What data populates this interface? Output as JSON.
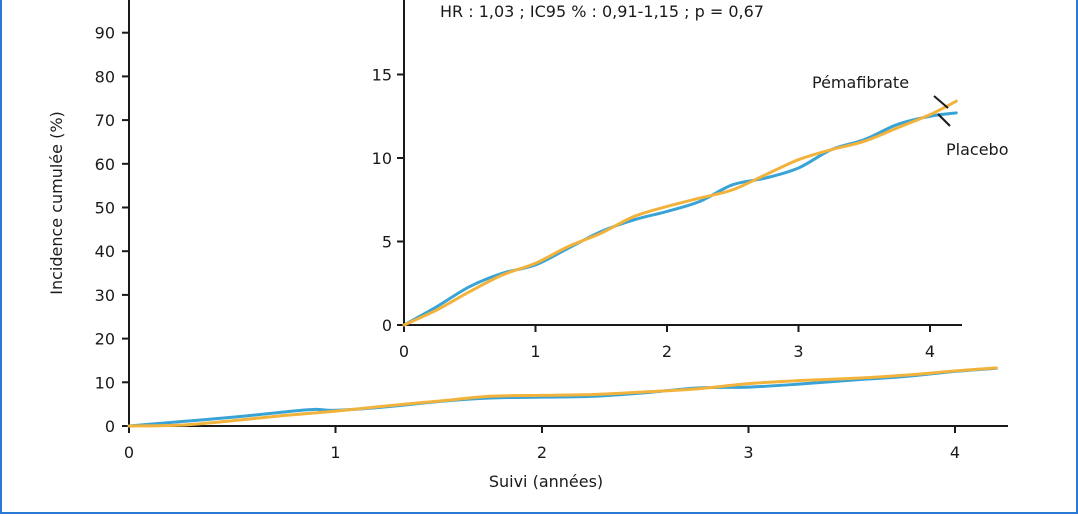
{
  "colors": {
    "frame": "#2d7ad6",
    "placebo": "#3aa3d6",
    "pemafibrate": "#f2b33d"
  },
  "chart_data": [
    {
      "type": "line",
      "xlabel": "Suivi (années)",
      "ylabel": "Incidence cumulée (%)",
      "xlim": [
        0,
        4.25
      ],
      "ylim": [
        0,
        90
      ],
      "x_ticks": [
        "0",
        "1",
        "2",
        "3",
        "4"
      ],
      "y_ticks": [
        "0",
        "10",
        "20",
        "30",
        "40",
        "50",
        "60",
        "70",
        "80",
        "90"
      ],
      "series": [
        {
          "name": "Placebo",
          "color": "#3aa3d6",
          "x": [
            0,
            0.25,
            0.5,
            0.75,
            0.9,
            1.0,
            1.25,
            1.5,
            1.75,
            2.0,
            2.25,
            2.5,
            2.75,
            3.0,
            3.25,
            3.5,
            3.75,
            4.0,
            4.2
          ],
          "y": [
            0,
            1.0,
            2.0,
            3.2,
            3.8,
            3.6,
            4.4,
            5.6,
            6.4,
            6.6,
            6.8,
            7.6,
            8.7,
            8.9,
            9.6,
            10.5,
            11.3,
            12.5,
            13.2
          ]
        },
        {
          "name": "Pémafibrate",
          "color": "#f2b33d",
          "x": [
            0,
            0.25,
            0.5,
            0.75,
            1.0,
            1.25,
            1.5,
            1.75,
            2.0,
            2.25,
            2.5,
            2.75,
            3.0,
            3.25,
            3.5,
            3.75,
            4.0,
            4.2
          ],
          "y": [
            0,
            0.2,
            1.2,
            2.4,
            3.4,
            4.6,
            5.7,
            6.8,
            7.0,
            7.2,
            7.8,
            8.5,
            9.7,
            10.4,
            10.9,
            11.6,
            12.6,
            13.3
          ]
        }
      ]
    },
    {
      "type": "line",
      "annotation": "HR : 1,03 ; IC95 % : 0,91-1,15 ; p = 0,67",
      "xlim": [
        0,
        4.25
      ],
      "ylim": [
        0,
        20
      ],
      "x_ticks": [
        "0",
        "1",
        "2",
        "3",
        "4"
      ],
      "y_ticks": [
        "0",
        "5",
        "10",
        "15"
      ],
      "series": [
        {
          "name": "Placebo",
          "color": "#3aa3d6",
          "x": [
            0,
            0.25,
            0.5,
            0.75,
            1.0,
            1.25,
            1.5,
            1.75,
            2.0,
            2.25,
            2.5,
            2.75,
            3.0,
            3.25,
            3.5,
            3.75,
            4.0,
            4.2
          ],
          "y": [
            0,
            1.1,
            2.3,
            3.1,
            3.6,
            4.6,
            5.6,
            6.3,
            6.8,
            7.4,
            8.4,
            8.8,
            9.4,
            10.5,
            11.1,
            12.0,
            12.5,
            12.7
          ]
        },
        {
          "name": "Pémafibrate",
          "color": "#f2b33d",
          "x": [
            0,
            0.25,
            0.5,
            0.75,
            1.0,
            1.25,
            1.5,
            1.75,
            2.0,
            2.25,
            2.5,
            2.75,
            3.0,
            3.25,
            3.5,
            3.75,
            4.0,
            4.2
          ],
          "y": [
            0,
            0.9,
            2.0,
            3.0,
            3.7,
            4.7,
            5.5,
            6.5,
            7.1,
            7.6,
            8.1,
            9.0,
            9.9,
            10.5,
            11.0,
            11.8,
            12.6,
            13.4
          ]
        }
      ],
      "labels": {
        "pemafibrate": "Pémafibrate",
        "placebo": "Placebo"
      }
    }
  ]
}
